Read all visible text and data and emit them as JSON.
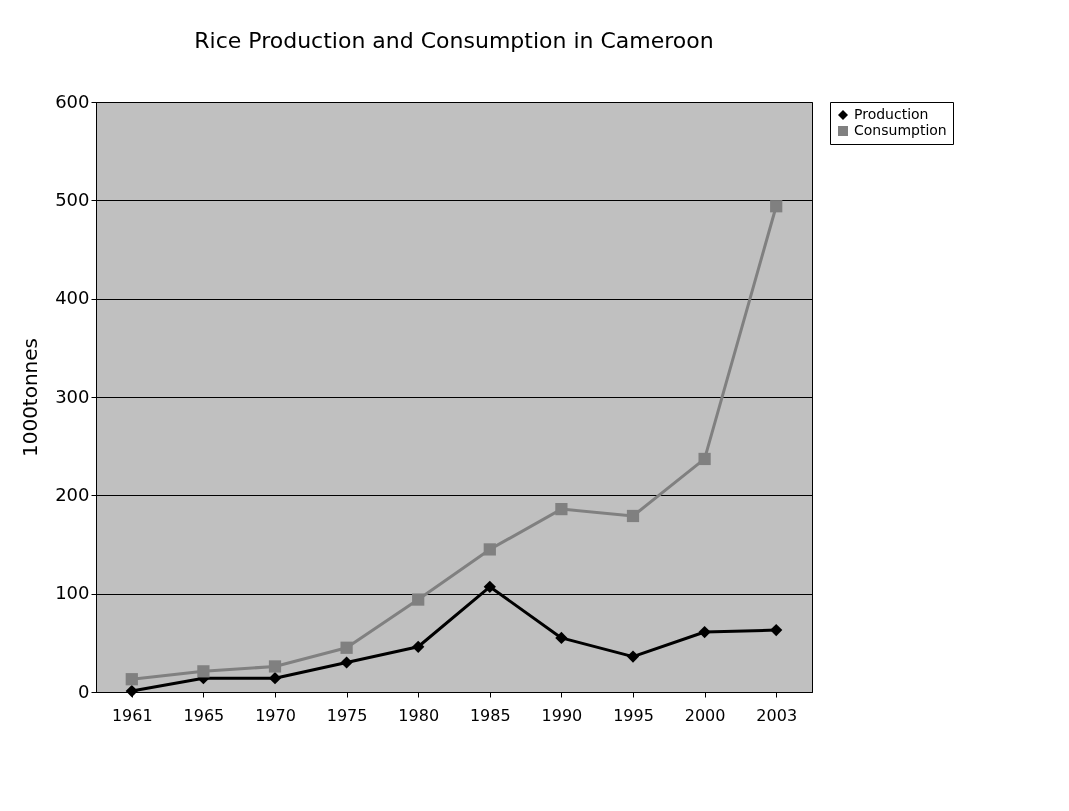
{
  "chart_data": {
    "type": "line",
    "title": "Rice Production and Consumption in Cameroon",
    "ylabel": "1000tonnes",
    "categories": [
      "1961",
      "1965",
      "1970",
      "1975",
      "1980",
      "1985",
      "1990",
      "1995",
      "2000",
      "2003"
    ],
    "series": [
      {
        "name": "Production",
        "color": "#000000",
        "marker": "diamond",
        "values": [
          1,
          14,
          14,
          30,
          46,
          107,
          55,
          36,
          61,
          63
        ]
      },
      {
        "name": "Consumption",
        "color": "#808080",
        "marker": "square",
        "values": [
          13,
          21,
          26,
          45,
          94,
          145,
          186,
          179,
          237,
          494
        ]
      }
    ],
    "ylim": [
      0,
      600
    ],
    "yticks": [
      0,
      100,
      200,
      300,
      400,
      500,
      600
    ],
    "grid": "y",
    "legend": "right",
    "line_style": "solid"
  }
}
